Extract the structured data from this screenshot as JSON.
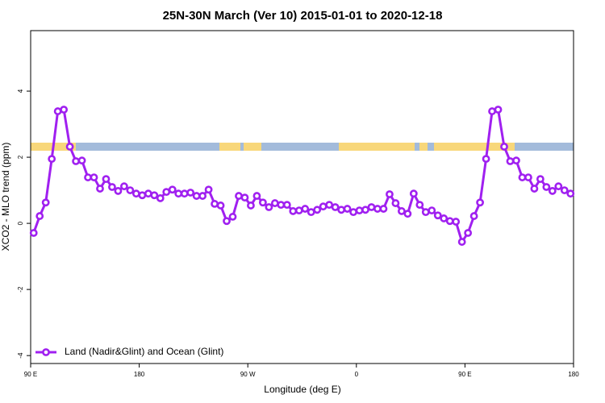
{
  "chart_data": {
    "type": "line",
    "title": "25N-30N March (Ver 10)   2015-01-01 to 2020-12-18",
    "x_label": "Longitude (deg E)",
    "y_label": "XCO2 - MLO trend (ppm)",
    "x": [
      92.5,
      97.5,
      102.5,
      107.5,
      112.5,
      117.5,
      122.5,
      127.5,
      132.5,
      137.5,
      142.5,
      147.5,
      152.5,
      157.5,
      162.5,
      167.5,
      172.5,
      177.5,
      182.5,
      187.5,
      192.5,
      197.5,
      202.5,
      207.5,
      212.5,
      217.5,
      222.5,
      227.5,
      232.5,
      237.5,
      242.5,
      247.5,
      252.5,
      257.5,
      262.5,
      267.5,
      272.5,
      277.5,
      282.5,
      287.5,
      292.5,
      297.5,
      302.5,
      307.5,
      312.5,
      317.5,
      322.5,
      327.5,
      332.5,
      337.5,
      342.5,
      347.5,
      352.5,
      357.5,
      362.5,
      367.5,
      372.5,
      377.5,
      382.5,
      387.5,
      392.5,
      397.5,
      402.5,
      407.5,
      412.5,
      417.5,
      422.5,
      427.5,
      432.5,
      437.5,
      442.5,
      447.5,
      452.5,
      457.5,
      462.5,
      467.5,
      472.5,
      477.5,
      482.5,
      487.5,
      492.5,
      497.5,
      502.5,
      507.5,
      512.5,
      517.5,
      522.5,
      527.5,
      532.5,
      537.5
    ],
    "series": [
      {
        "name": "Land (Nadir&Glint) and Ocean (Glint)",
        "color": "#a020f0",
        "values": [
          -0.29,
          0.22,
          0.63,
          1.95,
          3.39,
          3.44,
          2.32,
          1.88,
          1.9,
          1.39,
          1.39,
          1.05,
          1.34,
          1.1,
          0.98,
          1.12,
          1.0,
          0.9,
          0.85,
          0.9,
          0.85,
          0.76,
          0.95,
          1.02,
          0.9,
          0.9,
          0.93,
          0.83,
          0.83,
          1.02,
          0.59,
          0.54,
          0.07,
          0.2,
          0.83,
          0.78,
          0.54,
          0.83,
          0.63,
          0.49,
          0.61,
          0.56,
          0.56,
          0.37,
          0.39,
          0.44,
          0.34,
          0.41,
          0.51,
          0.56,
          0.49,
          0.41,
          0.44,
          0.34,
          0.39,
          0.41,
          0.49,
          0.44,
          0.44,
          0.88,
          0.61,
          0.37,
          0.29,
          0.9,
          0.56,
          0.34,
          0.39,
          0.24,
          0.15,
          0.07,
          0.05,
          -0.56,
          -0.29,
          0.22,
          0.63,
          1.95,
          3.39,
          3.44,
          2.32,
          1.88,
          1.9,
          1.39,
          1.39,
          1.05,
          1.34,
          1.1,
          0.98,
          1.12,
          1.0,
          0.9
        ]
      }
    ],
    "xlim": [
      90,
      540
    ],
    "xticks": [
      {
        "value": 90,
        "label": "90 E"
      },
      180,
      {
        "value": 270,
        "label": "90 W"
      },
      {
        "value": 360,
        "label": "0"
      },
      {
        "value": 450,
        "label": "90 E"
      },
      {
        "value": 540,
        "label": "180"
      }
    ],
    "ylim": [
      -4.24,
      5.83
    ],
    "yticks": [
      -4,
      -2,
      0,
      2,
      4
    ],
    "legend": "bottomleft"
  }
}
